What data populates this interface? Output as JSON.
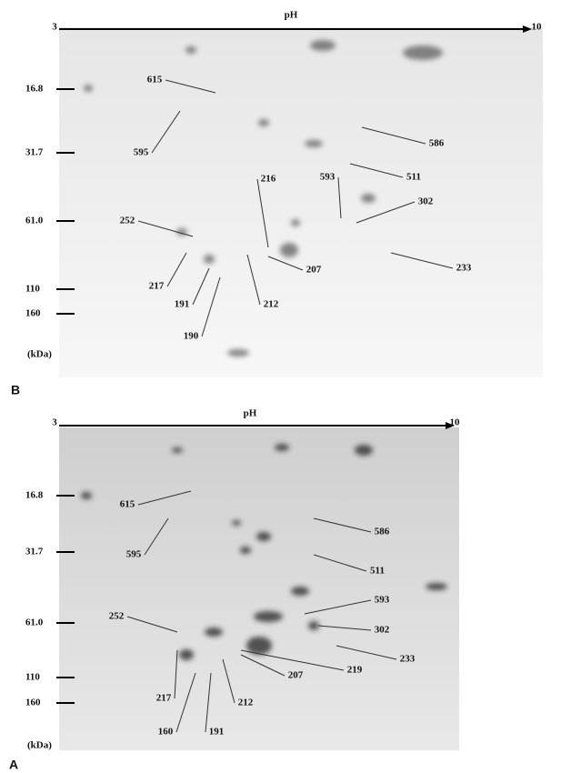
{
  "panels": [
    {
      "letter": "B",
      "axis": {
        "start": "3",
        "end": "10",
        "label": "pH"
      },
      "mw": [
        "16.8",
        "31.7",
        "61.0",
        "110",
        "160",
        "(kDa)"
      ],
      "spots": [
        "615",
        "595",
        "586",
        "511",
        "593",
        "302",
        "252",
        "216",
        "207",
        "233",
        "217",
        "191",
        "212",
        "190"
      ]
    },
    {
      "letter": "A",
      "axis": {
        "start": "3",
        "end": "10",
        "label": "pH"
      },
      "mw": [
        "16.8",
        "31.7",
        "61.0",
        "110",
        "160",
        "(kDa)"
      ],
      "spots": [
        "615",
        "595",
        "586",
        "511",
        "593",
        "302",
        "252",
        "233",
        "219",
        "207",
        "217",
        "212",
        "160",
        "191"
      ]
    }
  ]
}
